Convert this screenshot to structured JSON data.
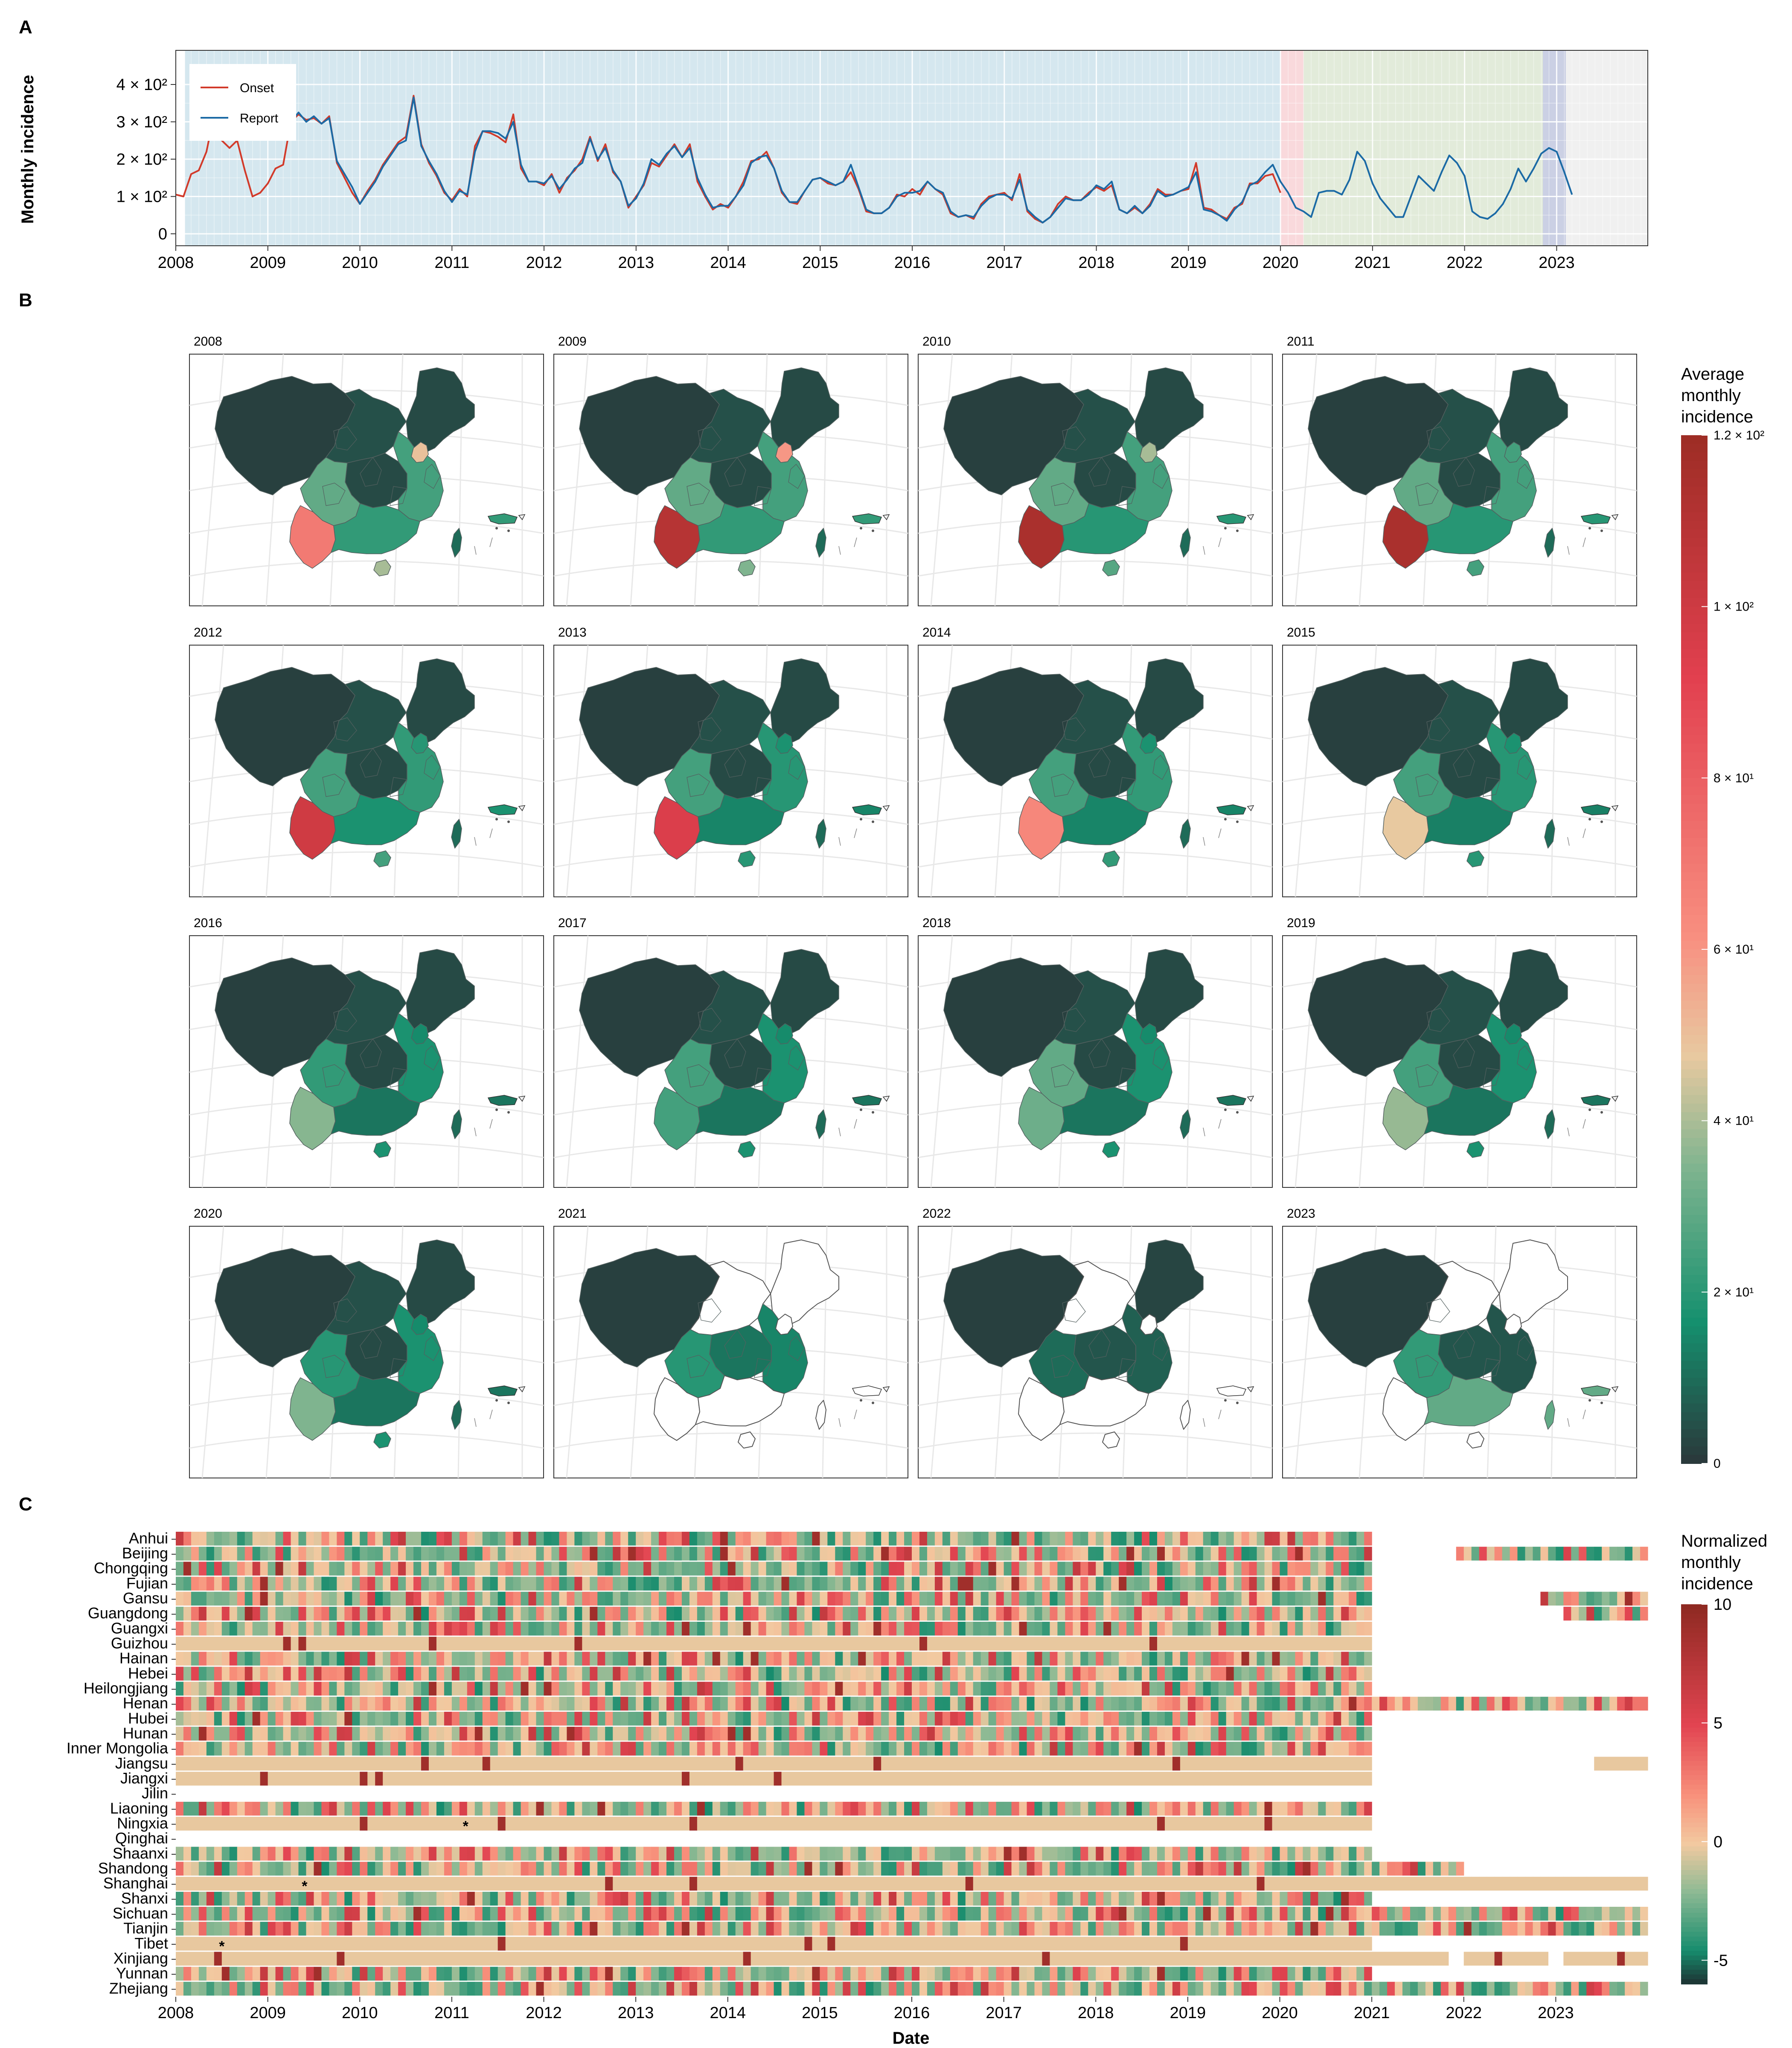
{
  "panels": {
    "a": "A",
    "b": "B",
    "c": "C"
  },
  "chart_data": [
    {
      "type": "line",
      "ylabel": "Monthly incidence",
      "y_ticks": [
        "0",
        "1 × 10²",
        "2 × 10²",
        "3 × 10²",
        "4 × 10²"
      ],
      "x_ticks": [
        "2008",
        "2009",
        "2010",
        "2011",
        "2012",
        "2013",
        "2014",
        "2015",
        "2016",
        "2017",
        "2018",
        "2019",
        "2020",
        "2021",
        "2022",
        "2023"
      ],
      "ylim": [
        0,
        470
      ],
      "x_start": 2008.0,
      "x_end": 2023.99,
      "background_periods": [
        {
          "from": 2008.1,
          "to": 2009.3,
          "color": "#d5e7ef"
        },
        {
          "from": 2009.3,
          "to": 2020.0,
          "color": "#d5e7ef"
        },
        {
          "from": 2020.0,
          "to": 2020.25,
          "color": "#f9d9dc"
        },
        {
          "from": 2020.25,
          "to": 2022.85,
          "color": "#e2ebda"
        },
        {
          "from": 2022.85,
          "to": 2023.1,
          "color": "#cbd0e4"
        },
        {
          "from": 2023.1,
          "to": 2023.99,
          "color": "#f0f0f0"
        }
      ],
      "legend_position": "top-left",
      "series": [
        {
          "name": "Onset",
          "color": "#d23a2a",
          "values": [
            105,
            100,
            160,
            170,
            220,
            320,
            250,
            230,
            250,
            170,
            100,
            110,
            135,
            175,
            185,
            300,
            320,
            305,
            310,
            295,
            315,
            190,
            150,
            110,
            80,
            115,
            145,
            185,
            215,
            245,
            260,
            370,
            240,
            190,
            155,
            110,
            90,
            120,
            100,
            235,
            275,
            270,
            260,
            245,
            320,
            175,
            140,
            140,
            130,
            160,
            110,
            150,
            170,
            200,
            260,
            195,
            240,
            165,
            140,
            70,
            100,
            130,
            190,
            180,
            210,
            240,
            205,
            240,
            140,
            100,
            65,
            80,
            70,
            100,
            140,
            195,
            200,
            220,
            175,
            110,
            85,
            80,
            115,
            145,
            150,
            135,
            130,
            140,
            165,
            120,
            60,
            55,
            55,
            70,
            105,
            100,
            120,
            105,
            140,
            120,
            105,
            55,
            45,
            50,
            40,
            80,
            100,
            105,
            110,
            90,
            160,
            60,
            40,
            30,
            45,
            80,
            100,
            90,
            90,
            110,
            125,
            115,
            130,
            65,
            55,
            70,
            55,
            80,
            120,
            105,
            105,
            115,
            120,
            190,
            70,
            65,
            50,
            40,
            70,
            80,
            135,
            135,
            155,
            160,
            110
          ]
        },
        {
          "name": "Report",
          "color": "#1b6aa5",
          "values": [
            null,
            null,
            null,
            null,
            null,
            null,
            null,
            null,
            null,
            null,
            null,
            null,
            null,
            null,
            null,
            300,
            325,
            300,
            315,
            295,
            310,
            195,
            160,
            125,
            80,
            110,
            140,
            180,
            210,
            240,
            250,
            365,
            235,
            195,
            160,
            115,
            85,
            115,
            105,
            220,
            275,
            275,
            270,
            255,
            300,
            185,
            140,
            140,
            135,
            155,
            120,
            145,
            175,
            190,
            255,
            200,
            230,
            170,
            140,
            75,
            95,
            135,
            200,
            185,
            215,
            235,
            205,
            230,
            150,
            105,
            70,
            75,
            75,
            100,
            130,
            190,
            205,
            210,
            175,
            115,
            85,
            85,
            115,
            145,
            150,
            140,
            130,
            140,
            185,
            125,
            65,
            55,
            55,
            70,
            100,
            110,
            110,
            115,
            140,
            120,
            110,
            60,
            45,
            50,
            45,
            75,
            95,
            105,
            105,
            95,
            145,
            65,
            45,
            30,
            45,
            70,
            95,
            90,
            90,
            105,
            130,
            120,
            140,
            65,
            55,
            75,
            55,
            75,
            115,
            100,
            105,
            115,
            125,
            165,
            65,
            60,
            50,
            35,
            65,
            85,
            130,
            140,
            165,
            185,
            140,
            110,
            70,
            60,
            45,
            110,
            115,
            115,
            105,
            145,
            220,
            195,
            135,
            95,
            70,
            45,
            45,
            100,
            155,
            135,
            115,
            165,
            210,
            190,
            155,
            60,
            45,
            40,
            55,
            80,
            120,
            175,
            140,
            175,
            215,
            230,
            220,
            165,
            105
          ]
        }
      ]
    },
    {
      "type": "heatmap",
      "title": "Average monthly incidence",
      "facets": [
        "2008",
        "2009",
        "2010",
        "2011",
        "2012",
        "2013",
        "2014",
        "2015",
        "2016",
        "2017",
        "2018",
        "2019",
        "2020",
        "2021",
        "2022",
        "2023"
      ],
      "legend_ticks": [
        "1.2 × 10²",
        "1 × 10²",
        "8 × 10¹",
        "6 × 10¹",
        "4 × 10¹",
        "2 × 10¹",
        "0"
      ],
      "value_range": [
        0,
        120
      ],
      "regions": [
        "Northwest",
        "North",
        "Northeast",
        "Central",
        "East",
        "Southwest",
        "Yunnan",
        "South",
        "Hainan",
        "Taiwan",
        "Beijing-Tianjin"
      ],
      "values": [
        [
          2,
          5,
          4,
          4,
          25,
          30,
          70,
          22,
          40,
          10,
          50
        ],
        [
          2,
          5,
          4,
          4,
          25,
          30,
          110,
          22,
          35,
          10,
          60
        ],
        [
          2,
          5,
          4,
          4,
          25,
          30,
          115,
          20,
          28,
          10,
          40
        ],
        [
          2,
          5,
          4,
          4,
          25,
          30,
          115,
          20,
          25,
          10,
          25
        ],
        [
          2,
          5,
          4,
          4,
          22,
          25,
          100,
          18,
          25,
          10,
          20
        ],
        [
          2,
          5,
          4,
          4,
          20,
          25,
          95,
          15,
          20,
          10,
          18
        ],
        [
          2,
          5,
          4,
          4,
          22,
          25,
          65,
          15,
          22,
          10,
          18
        ],
        [
          2,
          5,
          4,
          4,
          20,
          25,
          48,
          14,
          20,
          10,
          18
        ],
        [
          2,
          5,
          4,
          4,
          18,
          22,
          36,
          12,
          18,
          10,
          16
        ],
        [
          2,
          5,
          4,
          4,
          18,
          25,
          25,
          12,
          18,
          10,
          16
        ],
        [
          2,
          5,
          4,
          4,
          18,
          30,
          32,
          12,
          18,
          10,
          16
        ],
        [
          2,
          5,
          4,
          4,
          18,
          25,
          38,
          12,
          18,
          10,
          16
        ],
        [
          2,
          5,
          4,
          4,
          18,
          20,
          35,
          12,
          18,
          10,
          16
        ],
        [
          2,
          null,
          null,
          12,
          15,
          20,
          null,
          null,
          null,
          null,
          null
        ],
        [
          2,
          null,
          3,
          6,
          8,
          10,
          null,
          null,
          null,
          null,
          null
        ],
        [
          2,
          null,
          null,
          6,
          6,
          22,
          null,
          30,
          null,
          30,
          null
        ]
      ]
    },
    {
      "type": "heatmap",
      "title": "Normalized monthly incidence",
      "xlabel": "Date",
      "x_ticks": [
        "2008",
        "2009",
        "2010",
        "2011",
        "2012",
        "2013",
        "2014",
        "2015",
        "2016",
        "2017",
        "2018",
        "2019",
        "2020",
        "2021",
        "2022",
        "2023"
      ],
      "legend_ticks": [
        "10",
        "5",
        "0",
        "-5"
      ],
      "value_range": [
        -6,
        10
      ],
      "provinces": [
        "Anhui",
        "Beijing",
        "Chongqing",
        "Fujian",
        "Gansu",
        "Guangdong",
        "Guangxi",
        "Guizhou",
        "Hainan",
        "Hebei",
        "Heilongjiang",
        "Henan",
        "Hubei",
        "Hunan",
        "Inner Mongolia",
        "Jiangsu",
        "Jiangxi",
        "Jilin",
        "Liaoning",
        "Ningxia",
        "Qinghai",
        "Shaanxi",
        "Shandong",
        "Shanghai",
        "Shanxi",
        "Sichuan",
        "Tianjin",
        "Tibet",
        "Xinjiang",
        "Yunnan",
        "Zhejiang"
      ],
      "markers": [
        {
          "province": "Ningxia",
          "x": 2011.15,
          "label": "*"
        },
        {
          "province": "Shanghai",
          "x": 2009.4,
          "label": "*"
        },
        {
          "province": "Tibet",
          "x": 2008.5,
          "label": "*"
        }
      ]
    }
  ]
}
